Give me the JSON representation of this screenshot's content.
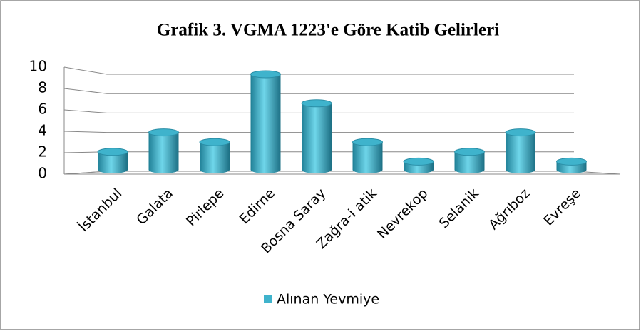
{
  "chart_data": {
    "type": "bar3d",
    "title": "Grafik 3. VGMA 1223'e Göre Katib Gelirleri",
    "categories": [
      "İstanbul",
      "Galata",
      "Pirlepe",
      "Edirne",
      "Bosna Saray",
      "Zağra-i atik",
      "Nevrekop",
      "Selanik",
      "Ağrıboz",
      "Evreşe"
    ],
    "series": [
      {
        "name": "Alınan Yevmiye",
        "color": "#3fb3cc",
        "values": [
          2,
          4,
          3,
          10,
          7,
          3,
          1,
          2,
          4,
          1
        ]
      }
    ],
    "ylim": [
      0,
      10
    ],
    "yticks": [
      0,
      2,
      4,
      6,
      8,
      10
    ],
    "grid": true,
    "legend": "bottom"
  }
}
